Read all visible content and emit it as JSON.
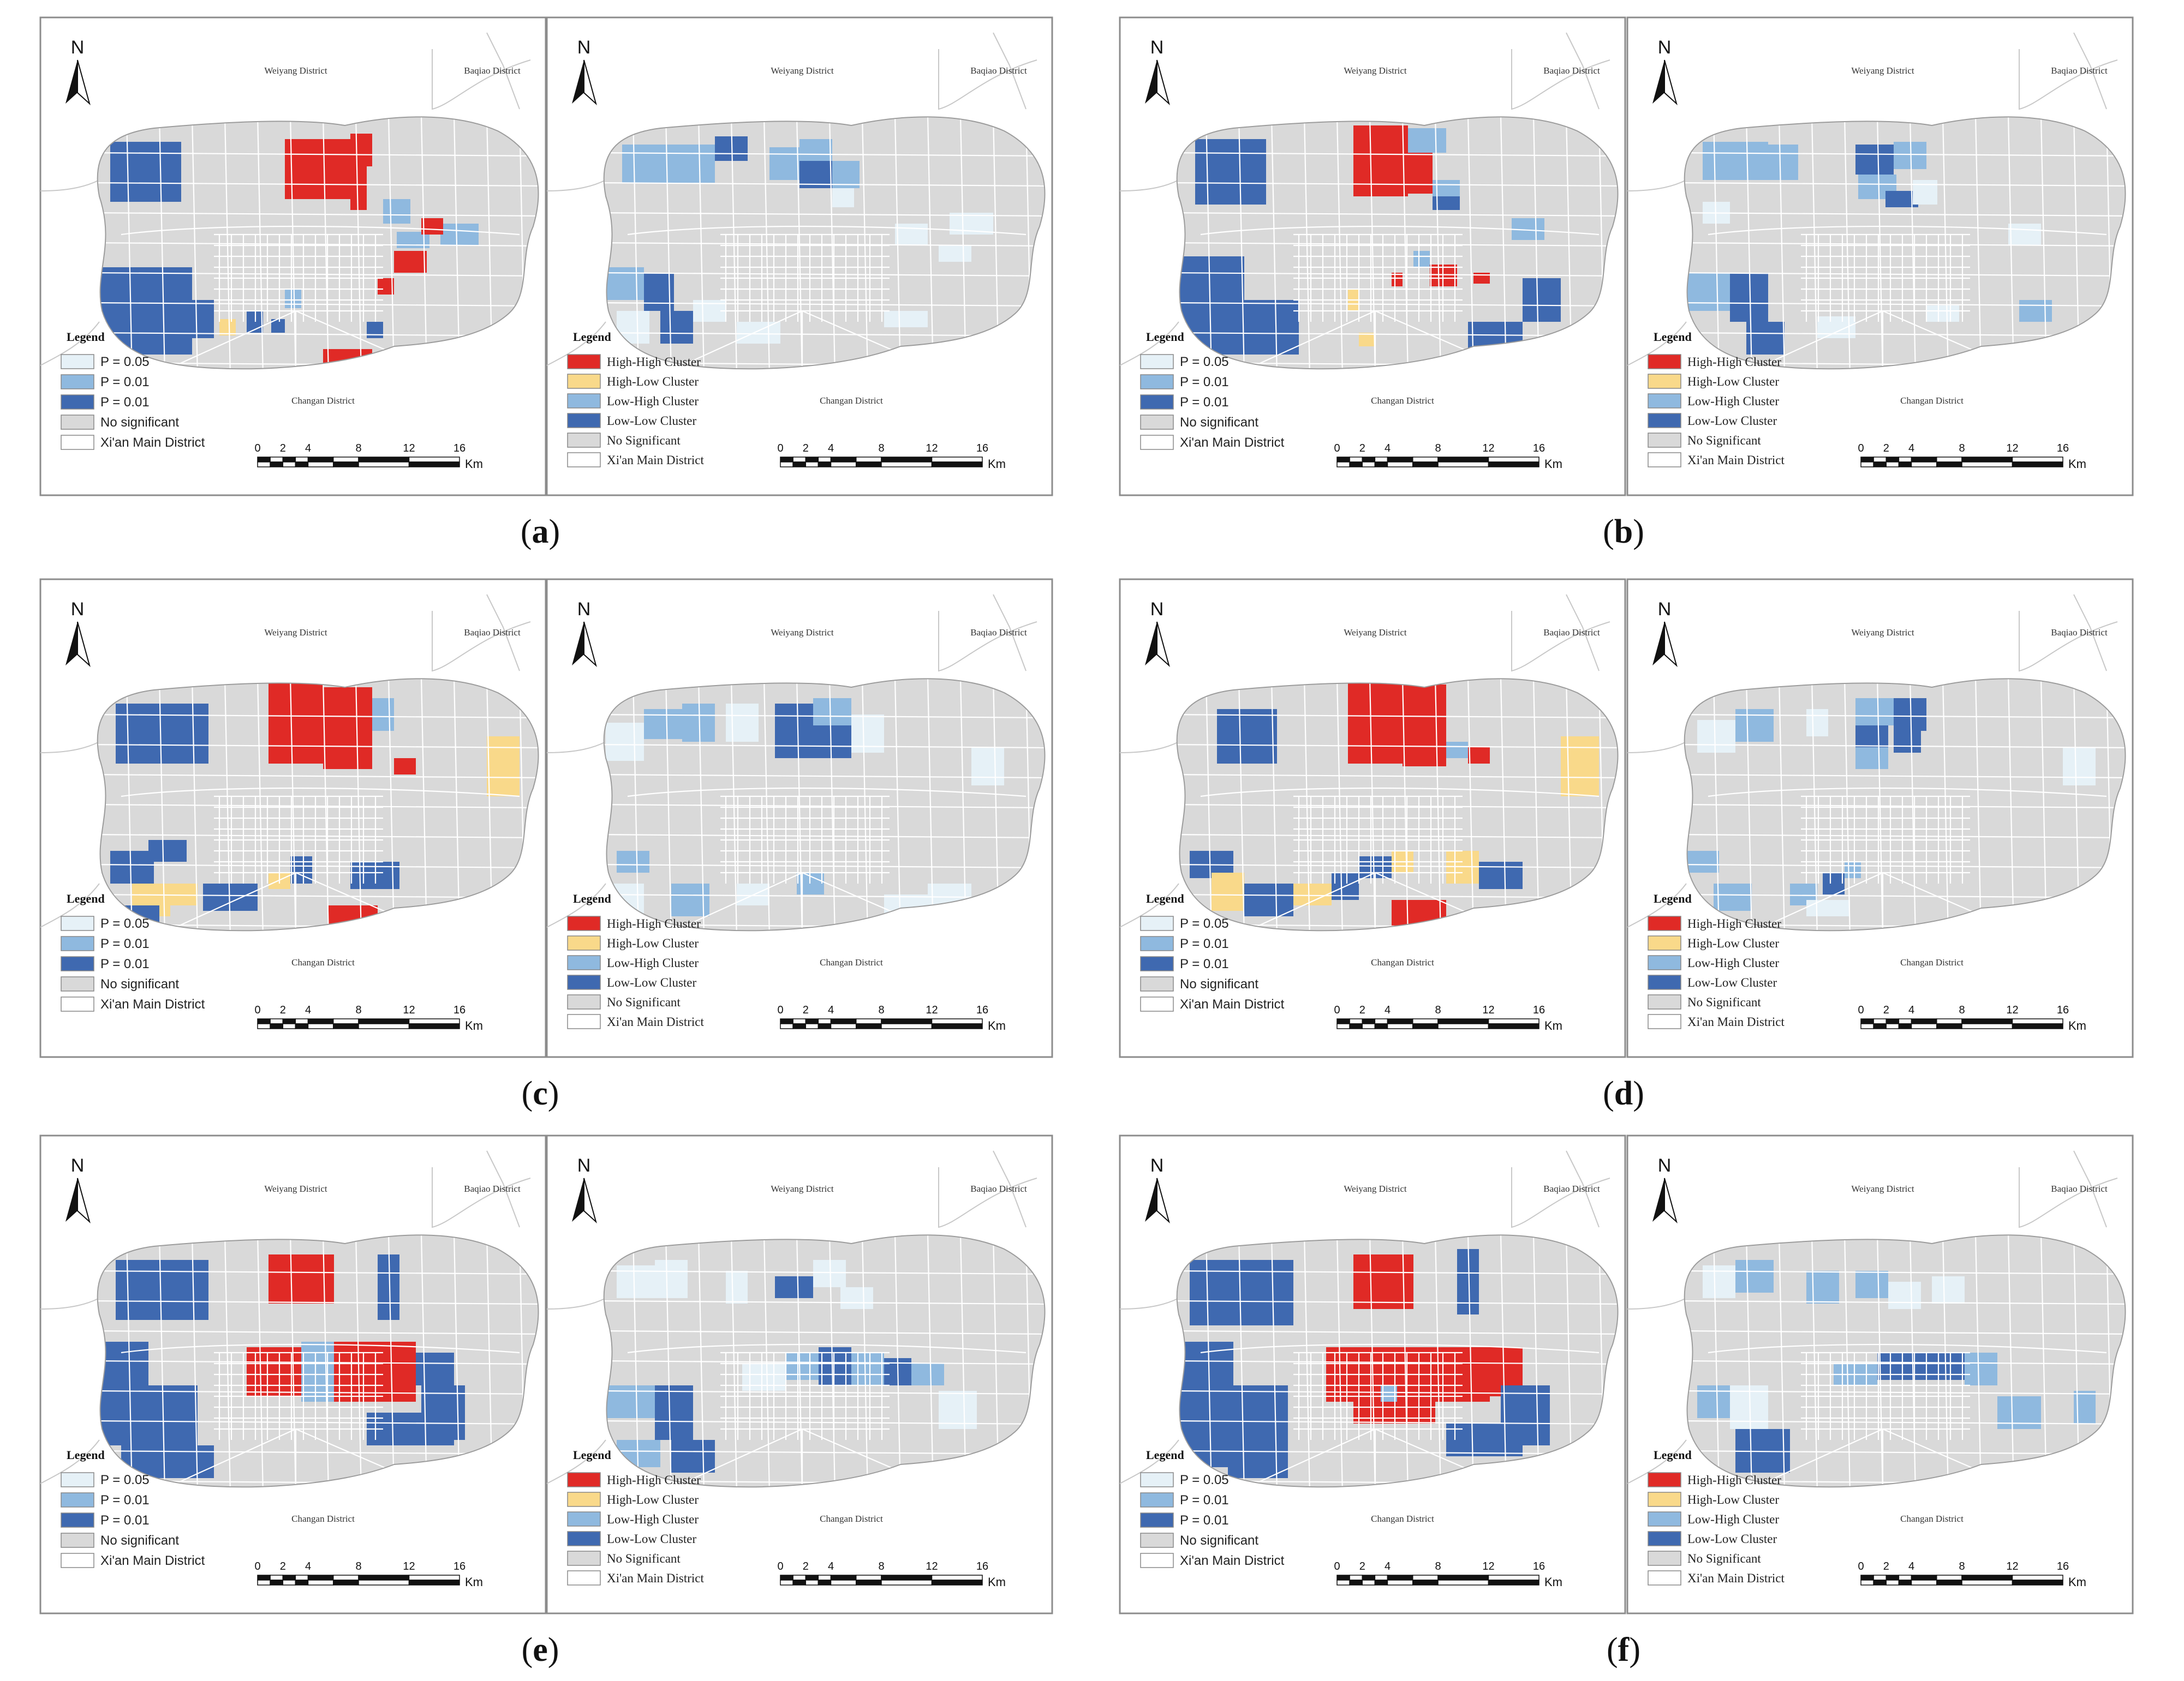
{
  "figure": {
    "rows": [
      {
        "pair_label": "a",
        "lisa_panel": "a-lisa",
        "sig_panel": "a-sig"
      },
      {
        "pair_label": "b",
        "lisa_panel": "b-lisa",
        "sig_panel": "b-sig"
      },
      {
        "pair_label": "c",
        "lisa_panel": "c-lisa",
        "sig_panel": "c-sig"
      },
      {
        "pair_label": "d",
        "lisa_panel": "d-lisa",
        "sig_panel": "d-sig"
      },
      {
        "pair_label": "e",
        "lisa_panel": "e-lisa",
        "sig_panel": "e-sig"
      },
      {
        "pair_label": "f",
        "lisa_panel": "f-lisa",
        "sig_panel": "f-sig"
      }
    ]
  },
  "map_text": {
    "north": "N",
    "weiyang": "Weiyang District",
    "baqiao": "Baqiao District",
    "changan": "Changan District",
    "legend_title": "Legend",
    "scale_ticks": [
      "0",
      "2",
      "4",
      "8",
      "12",
      "16"
    ],
    "scale_unit": "Km"
  },
  "significance_legend": [
    {
      "label": "P = 0.05",
      "color": "#e6f1f7"
    },
    {
      "label": "P = 0.01",
      "color": "#8fb9df"
    },
    {
      "label": "P = 0.01",
      "color": "#3f69b0"
    },
    {
      "label": "No significant",
      "color": "#d9d9d9"
    },
    {
      "label": "Xi'an Main District",
      "color": "#ffffff"
    }
  ],
  "cluster_legend": [
    {
      "label": "High-High Cluster",
      "color": "#e02a26"
    },
    {
      "label": "High-Low  Cluster",
      "color": "#f9d98a"
    },
    {
      "label": "Low-High  Cluster",
      "color": "#8fb9df"
    },
    {
      "label": "Low-Low   Cluster",
      "color": "#3f69b0"
    },
    {
      "label": "No Significant",
      "color": "#d9d9d9"
    },
    {
      "label": "Xi'an Main District",
      "color": "#ffffff"
    }
  ],
  "colors": {
    "base": "#d9d9d9",
    "grid": "#ffffff",
    "frame": "#8c8c8c",
    "road": "#c8c8c8"
  }
}
